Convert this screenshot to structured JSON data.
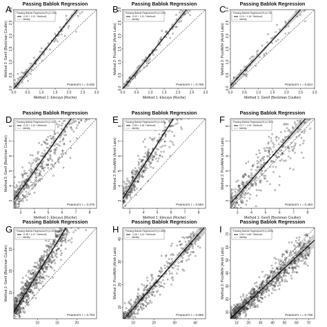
{
  "chart_data": [
    {
      "letter": "A",
      "type": "scatter",
      "title": "Passing Bablok Regression",
      "xlabel": "Method 1: Elecsys (Roche)",
      "ylabel": "Method 2: GenII (Beckman Coulter)",
      "legend_title": "Passing Bablok Regression/% (n=109)",
      "legend_entries": [
        "-0.02 + 1.31 * Method1",
        "identity"
      ],
      "pearson": "Pearson's r = 0.635",
      "xlim": [
        0,
        3.0
      ],
      "ylim": [
        0,
        3.0
      ],
      "xticks": [
        "0.0",
        "0.5",
        "1.0",
        "1.5",
        "2.0",
        "2.5",
        "3.0"
      ],
      "yticks": [
        "0.0",
        "0.5",
        "1.0",
        "1.5",
        "2.0",
        "2.5",
        "3.0"
      ],
      "regression": {
        "intercept": -0.02,
        "slope": 1.31
      },
      "n_points": 109,
      "spread": 0.18
    },
    {
      "letter": "B",
      "type": "scatter",
      "title": "Passing Bablok Regression",
      "xlabel": "Method 1: Elecsys (Roche)",
      "ylabel": "Method 2: PicoAMH (Ansh Labs)",
      "legend_title": "Passing Bablok Regression/% (n=109)",
      "legend_entries": [
        "-0.02 + 1.31 * Method1",
        "identity"
      ],
      "pearson": "Pearson's r = 0.706",
      "xlim": [
        0,
        3.0
      ],
      "ylim": [
        0,
        3.0
      ],
      "xticks": [
        "0.0",
        "0.5",
        "1.0",
        "1.5",
        "2.0",
        "2.5",
        "3.0"
      ],
      "yticks": [
        "0.0",
        "0.5",
        "1.0",
        "1.5",
        "2.0",
        "2.5",
        "3.0"
      ],
      "regression": {
        "intercept": -0.02,
        "slope": 1.31
      },
      "n_points": 109,
      "spread": 0.15
    },
    {
      "letter": "C",
      "type": "scatter",
      "title": "Passing Bablok Regression",
      "xlabel": "Method 1: GenII (Beckman Coulter)",
      "ylabel": "Method 2: PicoAMH (Ansh Labs)",
      "legend_title": "Passing Bablok Regression/% (n=78)",
      "legend_entries": [
        "0.10 + 1.16 * Method1",
        "identity"
      ],
      "pearson": "Pearson's r = 0.624",
      "xlim": [
        0,
        3.0
      ],
      "ylim": [
        0,
        3.0
      ],
      "xticks": [
        "0.0",
        "0.5",
        "1.0",
        "1.5",
        "2.0",
        "2.5",
        "3.0"
      ],
      "yticks": [
        "0.0",
        "0.5",
        "1.0",
        "1.5",
        "2.0",
        "2.5",
        "3.0"
      ],
      "regression": {
        "intercept": 0.1,
        "slope": 1.16
      },
      "n_points": 78,
      "spread": 0.2
    },
    {
      "letter": "D",
      "type": "scatter",
      "title": "Passing Bablok Regression",
      "xlabel": "Method 1: Elecsys (Roche)",
      "ylabel": "Method 2: GenII (Beckman Coulter)",
      "legend_title": "Passing Bablok Regression/% (n=437)",
      "legend_entries": [
        "-0.22 + 1.31 * Method1",
        "identity"
      ],
      "pearson": "Pearson's r = 0.275",
      "xlim": [
        2.5,
        8.5
      ],
      "ylim": [
        2.5,
        8.5
      ],
      "xticks": [
        "3",
        "4",
        "5",
        "6",
        "7",
        "8"
      ],
      "yticks": [
        "3",
        "4",
        "5",
        "6",
        "7",
        "8"
      ],
      "regression": {
        "intercept": -0.22,
        "slope": 1.31
      },
      "n_points": 437,
      "spread": 0.9
    },
    {
      "letter": "E",
      "type": "scatter",
      "title": "Passing Bablok Regression",
      "xlabel": "Method 1: Elecsys (Roche)",
      "ylabel": "Method 2: PicoAMH (Ansh Labs)",
      "legend_title": "Passing Bablok Regression/% (n=424)",
      "legend_entries": [
        "-0.50 + 1.46 * Method1",
        "identity"
      ],
      "pearson": "Pearson's r = 0.562",
      "xlim": [
        2.5,
        8.5
      ],
      "ylim": [
        2.5,
        8.5
      ],
      "xticks": [
        "3",
        "4",
        "5",
        "6",
        "7",
        "8"
      ],
      "yticks": [
        "3",
        "4",
        "5",
        "6",
        "7",
        "8"
      ],
      "regression": {
        "intercept": -0.5,
        "slope": 1.46
      },
      "n_points": 424,
      "spread": 0.6
    },
    {
      "letter": "F",
      "type": "scatter",
      "title": "Passing Bablok Regression",
      "xlabel": "Method 1: GenII (Beckman Coulter)",
      "ylabel": "Method 2: PicoAMH (Ansh Labs)",
      "legend_title": "Passing Bablok Regression/% (n=367)",
      "legend_entries": [
        "0.17 + 1.06 * Method1",
        "identity"
      ],
      "pearson": "Pearson's r = 0.463",
      "xlim": [
        2.5,
        8.5
      ],
      "ylim": [
        2.5,
        8.5
      ],
      "xticks": [
        "3",
        "4",
        "5",
        "6",
        "7",
        "8"
      ],
      "yticks": [
        "3",
        "4",
        "5",
        "6",
        "7",
        "8"
      ],
      "regression": {
        "intercept": 0.17,
        "slope": 1.06
      },
      "n_points": 367,
      "spread": 0.85
    },
    {
      "letter": "G",
      "type": "scatter",
      "title": "Passing Bablok Regression",
      "xlabel": "",
      "ylabel": "Method 2: GenII (Beckman Coulter)",
      "legend_title": "Passing Bablok Regression/% (n=902)",
      "legend_entries": [
        "-0.38 + 1.47 * Method1",
        "identity"
      ],
      "pearson": "Pearson's r = 0.703",
      "xlim": [
        4,
        25
      ],
      "ylim": [
        4,
        25
      ],
      "xticks": [
        "10",
        "15",
        "20"
      ],
      "yticks": [
        "10",
        "15",
        "20"
      ],
      "regression": {
        "intercept": -0.38,
        "slope": 1.47
      },
      "n_points": 902,
      "spread": 2.2
    },
    {
      "letter": "H",
      "type": "scatter",
      "title": "Passing Bablok Regression",
      "xlabel": "",
      "ylabel": "Method 2: PicoAMH (Ansh Labs)",
      "legend_title": "Passing Bablok Regression/% (n=389)",
      "legend_entries": [
        "-1.06 + 1.04 * Method1",
        "identity"
      ],
      "pearson": "Pearson's r = 0.655",
      "xlim": [
        5,
        45
      ],
      "ylim": [
        5,
        45
      ],
      "xticks": [
        "10",
        "20",
        "30",
        "40"
      ],
      "yticks": [
        "10",
        "20",
        "30",
        "40"
      ],
      "regression": {
        "intercept": -1.06,
        "slope": 1.04
      },
      "n_points": 389,
      "spread": 3.5
    },
    {
      "letter": "I",
      "type": "scatter",
      "title": "Passing Bablok Regression",
      "xlabel": "",
      "ylabel": "Method 2: PicoAMH (Ansh Labs)",
      "legend_title": "Passing Bablok Regression/% (n=839)",
      "legend_entries": [
        "0.89 + 0.86 * Method1",
        "identity"
      ],
      "pearson": "Pearson's r = 0.738",
      "xlim": [
        5,
        75
      ],
      "ylim": [
        5,
        75
      ],
      "xticks": [
        "10",
        "20",
        "30",
        "40",
        "50",
        "60",
        "70"
      ],
      "yticks": [
        "10",
        "20",
        "30",
        "40",
        "50",
        "60",
        "70"
      ],
      "regression": {
        "intercept": 0.89,
        "slope": 0.86
      },
      "n_points": 839,
      "spread": 5
    }
  ]
}
